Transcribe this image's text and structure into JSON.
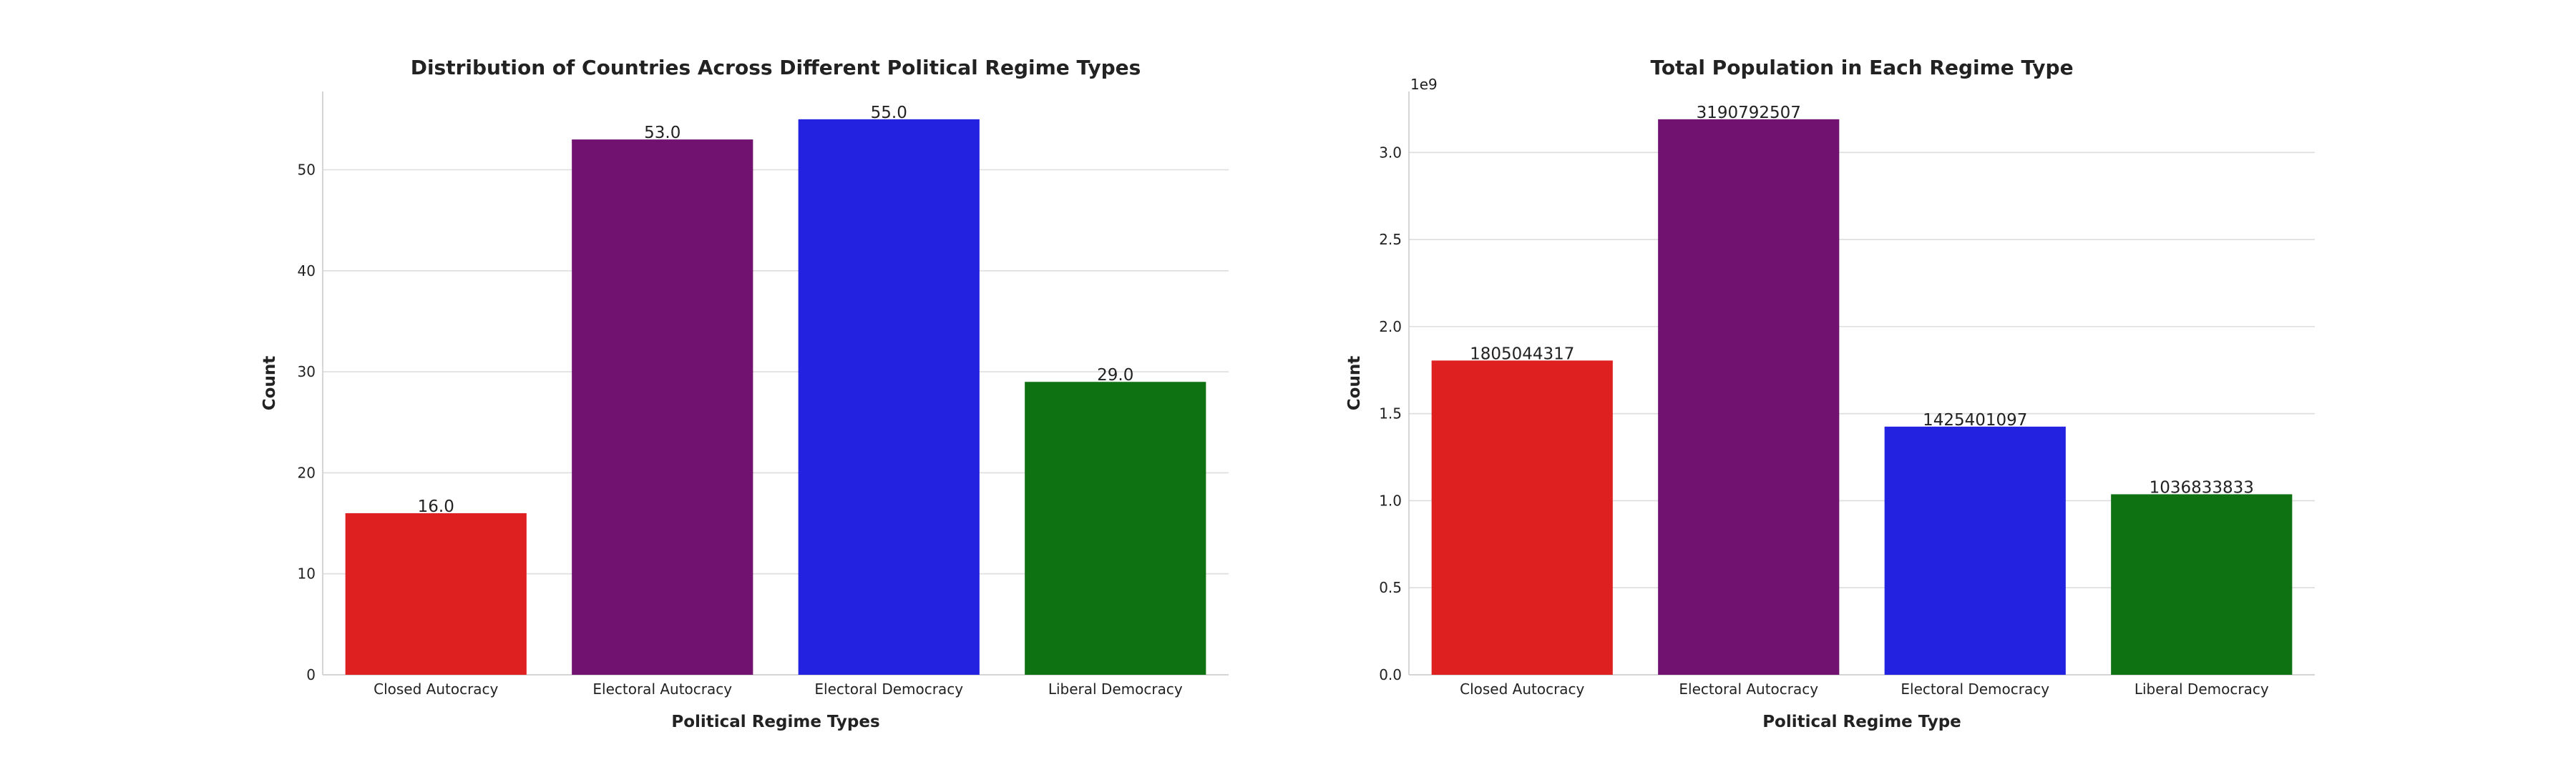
{
  "chart_data": [
    {
      "type": "bar",
      "title": "Distribution of Countries Across Different Political Regime Types",
      "xlabel": "Political Regime Types",
      "ylabel": "Count",
      "categories": [
        "Closed Autocracy",
        "Electoral Autocracy",
        "Electoral Democracy",
        "Liberal Democracy"
      ],
      "values": [
        16,
        53,
        55,
        29
      ],
      "value_labels": [
        "16.0",
        "53.0",
        "55.0",
        "29.0"
      ],
      "colors": [
        "#df2020",
        "#711270",
        "#2222e0",
        "#0e7212"
      ],
      "ylim": [
        0,
        57.75
      ],
      "yticks": [
        0,
        10,
        20,
        30,
        40,
        50
      ],
      "ytick_labels": [
        "0",
        "10",
        "20",
        "30",
        "40",
        "50"
      ],
      "grid": true
    },
    {
      "type": "bar",
      "title": "Total Population in Each Regime Type",
      "xlabel": "Political Regime Type",
      "ylabel": "Count",
      "offset_label": "1e9",
      "categories": [
        "Closed Autocracy",
        "Electoral Autocracy",
        "Electoral Democracy",
        "Liberal Democracy"
      ],
      "values": [
        1805044317,
        3190792507,
        1425401097,
        1036833833
      ],
      "value_labels": [
        "1805044317",
        "3190792507",
        "1425401097",
        "1036833833"
      ],
      "colors": [
        "#df2020",
        "#711270",
        "#2222e0",
        "#0e7212"
      ],
      "ylim": [
        0,
        3350332132
      ],
      "yticks": [
        0,
        500000000,
        1000000000,
        1500000000,
        2000000000,
        2500000000,
        3000000000
      ],
      "ytick_labels": [
        "0.0",
        "0.5",
        "1.0",
        "1.5",
        "2.0",
        "2.5",
        "3.0"
      ],
      "grid": true
    }
  ]
}
